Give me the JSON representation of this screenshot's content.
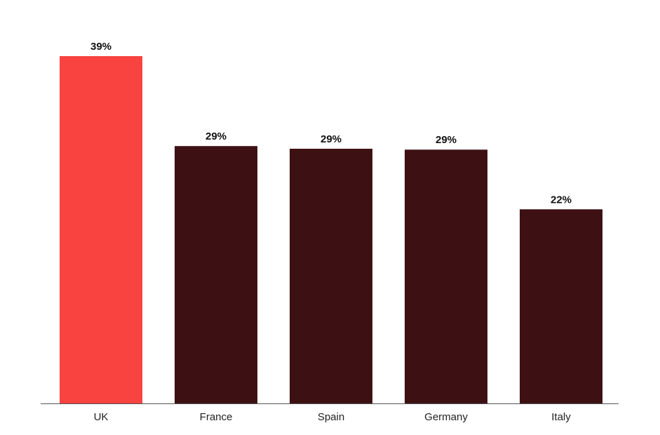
{
  "chart_data": {
    "type": "bar",
    "categories": [
      "UK",
      "France",
      "Spain",
      "Germany",
      "Italy"
    ],
    "values": [
      39,
      28.9,
      28.6,
      28.5,
      21.8
    ],
    "value_labels": [
      "39%",
      "29%",
      "29%",
      "29%",
      "22%"
    ],
    "colors": [
      "#f94341",
      "#3d1113",
      "#3d1113",
      "#3d1113",
      "#3d1113"
    ]
  }
}
